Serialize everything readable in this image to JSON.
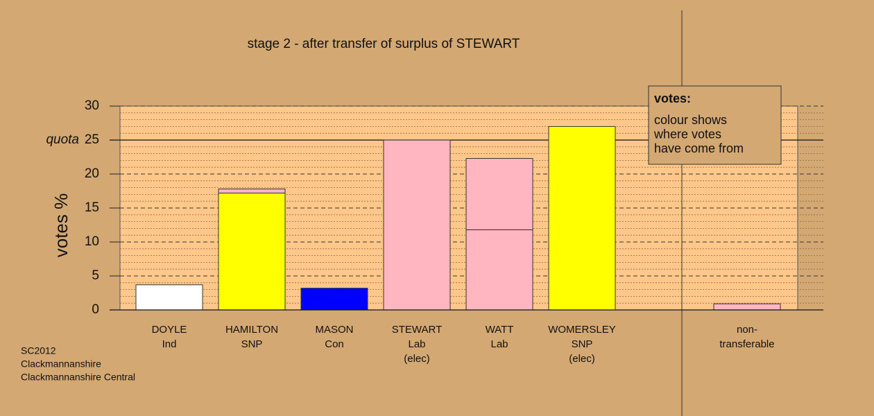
{
  "chart_data": {
    "type": "bar",
    "title": "stage 2 - after transfer of surplus of STEWART",
    "y_label": "votes %",
    "categories": [
      [
        "DOYLE",
        "Ind"
      ],
      [
        "HAMILTON",
        "SNP"
      ],
      [
        "MASON",
        "Con"
      ],
      [
        "STEWART",
        "Lab",
        "(elec)"
      ],
      [
        "WATT",
        "Lab"
      ],
      [
        "WOMERSLEY",
        "SNP",
        "(elec)"
      ],
      null,
      [
        "non-",
        "transferable"
      ]
    ],
    "series": [
      {
        "colors": [
          "#ffffff",
          "#ffff00",
          "#0000ff",
          "#ffb6c1",
          "#ffb6c1",
          "#ffff00",
          null,
          "#ffb6c1"
        ],
        "values": [
          3.7,
          17.2,
          3.2,
          25.0,
          11.8,
          27.0,
          null,
          0.9
        ]
      },
      {
        "color": "#ffb6c1",
        "values": [
          null,
          0.6,
          null,
          null,
          10.5,
          null,
          null,
          null
        ]
      }
    ],
    "ylim": [
      0,
      30
    ],
    "yticks": [
      0,
      5,
      10,
      15,
      20,
      25,
      30
    ],
    "grid": true,
    "quota": {
      "value": 25,
      "label": "quota"
    },
    "legend": {
      "title": "votes:",
      "lines": [
        "colour shows",
        "where votes",
        "have come from"
      ]
    },
    "footnote": [
      "SC2012",
      "Clackmannanshire",
      "Clackmannanshire Central"
    ]
  }
}
